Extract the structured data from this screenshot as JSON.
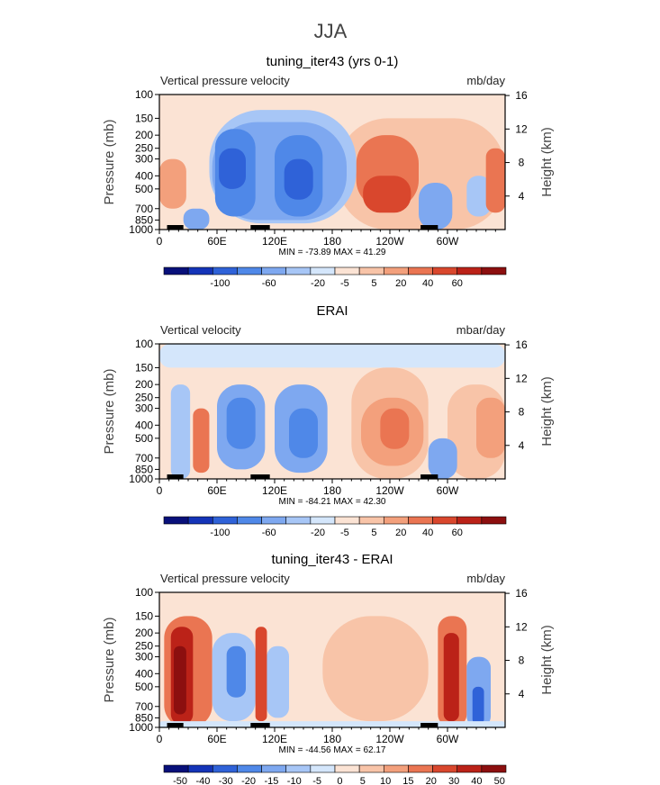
{
  "title": "JJA",
  "palette": {
    "levels": [
      "#08107a",
      "#1434b8",
      "#2f62d8",
      "#4f88e8",
      "#7ea8f0",
      "#a7c6f6",
      "#d4e6fb",
      "#fbe3d4",
      "#f8c4a8",
      "#f3a07c",
      "#ea7552",
      "#d9472d",
      "#bb2218",
      "#8c0f0f"
    ],
    "white": "#ffffff"
  },
  "chart_data": [
    {
      "type": "heatmap",
      "title": "tuning_iter43 (yrs 0-1)",
      "left_label": "Vertical pressure velocity",
      "right_label": "mb/day",
      "ylabel": "Pressure (mb)",
      "y2label": "Height (km)",
      "y_ticks": [
        "100",
        "150",
        "200",
        "250",
        "300",
        "400",
        "500",
        "700",
        "850",
        "1000"
      ],
      "y_tick_values": [
        100,
        150,
        200,
        250,
        300,
        400,
        500,
        700,
        850,
        1000
      ],
      "y2_ticks": [
        "16",
        "12",
        "8",
        "4"
      ],
      "y2_tick_values": [
        16,
        12,
        8,
        4
      ],
      "x_ticks": [
        "0",
        "60E",
        "120E",
        "180",
        "120W",
        "60W"
      ],
      "x_tick_values": [
        0,
        60,
        120,
        180,
        240,
        300
      ],
      "xlim": [
        0,
        360
      ],
      "ylim": [
        1000,
        100
      ],
      "min_max": "MIN = -73.89   MAX =  41.29",
      "colorbar_labels": [
        "-100",
        "-60",
        "-20",
        "-5",
        "5",
        "20",
        "40",
        "60"
      ],
      "colorbar_levels": [
        -140,
        -120,
        -100,
        -80,
        -60,
        -40,
        -20,
        -10,
        -5,
        0,
        5,
        10,
        20,
        30,
        40,
        50,
        60,
        80
      ],
      "field": [
        {
          "lon": [
            50,
            72
          ],
          "p": [
            100,
            150
          ],
          "level": 7
        },
        {
          "lon": [
            185,
            360
          ],
          "p": [
            100,
            150
          ],
          "level": 7
        },
        {
          "lon": [
            0,
            55
          ],
          "p": [
            150,
            1000
          ],
          "level": 7
        },
        {
          "lon": [
            185,
            360
          ],
          "p": [
            150,
            1000
          ],
          "level": 8
        },
        {
          "lon": [
            0,
            28
          ],
          "p": [
            300,
            700
          ],
          "level": 9
        },
        {
          "lon": [
            205,
            270
          ],
          "p": [
            200,
            700
          ],
          "level": 10
        },
        {
          "lon": [
            212,
            262
          ],
          "p": [
            400,
            750
          ],
          "level": 11
        },
        {
          "lon": [
            320,
            345
          ],
          "p": [
            400,
            800
          ],
          "level": 5
        },
        {
          "lon": [
            340,
            360
          ],
          "p": [
            250,
            750
          ],
          "level": 10
        },
        {
          "lon": [
            52,
            205
          ],
          "p": [
            130,
            900
          ],
          "level": 5
        },
        {
          "lon": [
            55,
            195
          ],
          "p": [
            160,
            850
          ],
          "level": 4
        },
        {
          "lon": [
            58,
            100
          ],
          "p": [
            180,
            800
          ],
          "level": 3
        },
        {
          "lon": [
            120,
            170
          ],
          "p": [
            200,
            800
          ],
          "level": 3
        },
        {
          "lon": [
            62,
            90
          ],
          "p": [
            250,
            500
          ],
          "level": 2
        },
        {
          "lon": [
            130,
            160
          ],
          "p": [
            300,
            600
          ],
          "level": 2
        },
        {
          "lon": [
            270,
            305
          ],
          "p": [
            450,
            1000
          ],
          "level": 4
        },
        {
          "lon": [
            25,
            52
          ],
          "p": [
            700,
            1000
          ],
          "level": 4
        }
      ]
    },
    {
      "type": "heatmap",
      "title": "ERAI",
      "left_label": "Vertical velocity",
      "right_label": "mbar/day",
      "ylabel": "Pressure (mb)",
      "y2label": "Height (km)",
      "y_ticks": [
        "100",
        "150",
        "200",
        "250",
        "300",
        "400",
        "500",
        "700",
        "850",
        "1000"
      ],
      "y_tick_values": [
        100,
        150,
        200,
        250,
        300,
        400,
        500,
        700,
        850,
        1000
      ],
      "y2_ticks": [
        "16",
        "12",
        "8",
        "4"
      ],
      "y2_tick_values": [
        16,
        12,
        8,
        4
      ],
      "x_ticks": [
        "0",
        "60E",
        "120E",
        "180",
        "120W",
        "60W"
      ],
      "x_tick_values": [
        0,
        60,
        120,
        180,
        240,
        300
      ],
      "xlim": [
        0,
        360
      ],
      "ylim": [
        1000,
        100
      ],
      "min_max": "MIN = -84.21   MAX =  42.30",
      "colorbar_labels": [
        "-100",
        "-60",
        "-20",
        "-5",
        "5",
        "20",
        "40",
        "60"
      ],
      "colorbar_levels": [
        -140,
        -120,
        -100,
        -80,
        -60,
        -40,
        -20,
        -10,
        -5,
        0,
        5,
        10,
        20,
        30,
        40,
        50,
        60,
        80
      ],
      "field": [
        {
          "lon": [
            0,
            360
          ],
          "p": [
            100,
            150
          ],
          "level": 6
        },
        {
          "lon": [
            20,
            200
          ],
          "p": [
            150,
            900
          ],
          "level": 7
        },
        {
          "lon": [
            200,
            280
          ],
          "p": [
            150,
            1000
          ],
          "level": 8
        },
        {
          "lon": [
            300,
            360
          ],
          "p": [
            200,
            1000
          ],
          "level": 8
        },
        {
          "lon": [
            210,
            275
          ],
          "p": [
            250,
            800
          ],
          "level": 9
        },
        {
          "lon": [
            230,
            260
          ],
          "p": [
            300,
            600
          ],
          "level": 10
        },
        {
          "lon": [
            330,
            360
          ],
          "p": [
            250,
            700
          ],
          "level": 9
        },
        {
          "lon": [
            35,
            52
          ],
          "p": [
            300,
            900
          ],
          "level": 10
        },
        {
          "lon": [
            12,
            32
          ],
          "p": [
            200,
            1000
          ],
          "level": 5
        },
        {
          "lon": [
            60,
            110
          ],
          "p": [
            200,
            850
          ],
          "level": 4
        },
        {
          "lon": [
            120,
            175
          ],
          "p": [
            200,
            900
          ],
          "level": 4
        },
        {
          "lon": [
            70,
            100
          ],
          "p": [
            250,
            600
          ],
          "level": 3
        },
        {
          "lon": [
            135,
            165
          ],
          "p": [
            300,
            700
          ],
          "level": 3
        },
        {
          "lon": [
            280,
            310
          ],
          "p": [
            500,
            1000
          ],
          "level": 4
        }
      ]
    },
    {
      "type": "heatmap",
      "title": "tuning_iter43 - ERAI",
      "left_label": "Vertical pressure velocity",
      "right_label": "mb/day",
      "ylabel": "Pressure (mb)",
      "y2label": "Height (km)",
      "y_ticks": [
        "100",
        "150",
        "200",
        "250",
        "300",
        "400",
        "500",
        "700",
        "850",
        "1000"
      ],
      "y_tick_values": [
        100,
        150,
        200,
        250,
        300,
        400,
        500,
        700,
        850,
        1000
      ],
      "y2_ticks": [
        "16",
        "12",
        "8",
        "4"
      ],
      "y2_tick_values": [
        16,
        12,
        8,
        4
      ],
      "x_ticks": [
        "0",
        "60E",
        "120E",
        "180",
        "120W",
        "60W"
      ],
      "x_tick_values": [
        0,
        60,
        120,
        180,
        240,
        300
      ],
      "xlim": [
        0,
        360
      ],
      "ylim": [
        1000,
        100
      ],
      "min_max": "MIN = -44.56   MAX =  62.17",
      "colorbar_labels": [
        "-50",
        "-40",
        "-30",
        "-20",
        "-15",
        "-10",
        "-5",
        "0",
        "5",
        "10",
        "15",
        "20",
        "30",
        "40",
        "50"
      ],
      "colorbar_levels": [
        -60,
        -50,
        -40,
        -30,
        -20,
        -15,
        -10,
        -5,
        0,
        5,
        10,
        15,
        20,
        30,
        40,
        50,
        60
      ],
      "field": [
        {
          "lon": [
            0,
            360
          ],
          "p": [
            100,
            1000
          ],
          "level": 7
        },
        {
          "lon": [
            170,
            280
          ],
          "p": [
            150,
            900
          ],
          "level": 8
        },
        {
          "lon": [
            5,
            55
          ],
          "p": [
            150,
            1000
          ],
          "level": 10
        },
        {
          "lon": [
            12,
            35
          ],
          "p": [
            180,
            950
          ],
          "level": 12
        },
        {
          "lon": [
            15,
            28
          ],
          "p": [
            250,
            800
          ],
          "level": 13
        },
        {
          "lon": [
            55,
            100
          ],
          "p": [
            200,
            900
          ],
          "level": 5
        },
        {
          "lon": [
            70,
            90
          ],
          "p": [
            250,
            600
          ],
          "level": 3
        },
        {
          "lon": [
            100,
            112
          ],
          "p": [
            180,
            900
          ],
          "level": 11
        },
        {
          "lon": [
            112,
            135
          ],
          "p": [
            250,
            850
          ],
          "level": 5
        },
        {
          "lon": [
            290,
            320
          ],
          "p": [
            150,
            1000
          ],
          "level": 10
        },
        {
          "lon": [
            296,
            312
          ],
          "p": [
            200,
            900
          ],
          "level": 12
        },
        {
          "lon": [
            320,
            345
          ],
          "p": [
            300,
            1000
          ],
          "level": 4
        },
        {
          "lon": [
            326,
            338
          ],
          "p": [
            500,
            950
          ],
          "level": 2
        },
        {
          "lon": [
            0,
            360
          ],
          "p": [
            900,
            1000
          ],
          "level": 6
        }
      ]
    }
  ]
}
